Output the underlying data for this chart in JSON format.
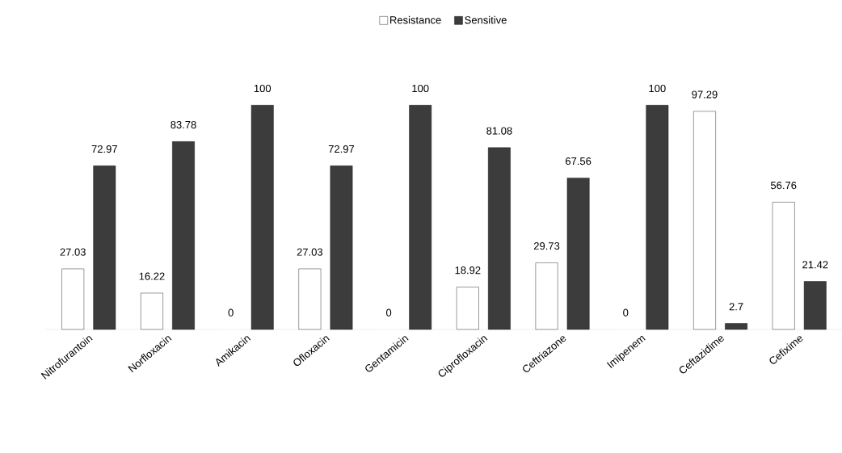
{
  "chart_data": {
    "type": "bar",
    "categories": [
      "Nitrofurantoin",
      "Norfloxacin",
      "Amikacin",
      "Ofloxacin",
      "Gentamicin",
      "Ciprofloxacin",
      "Ceftriazone",
      "Imipenem",
      "Ceftazidime",
      "Cefixime"
    ],
    "series": [
      {
        "name": "Resistance",
        "color": "#ffffff",
        "values": [
          27.03,
          16.22,
          0,
          27.03,
          0,
          18.92,
          29.73,
          0,
          97.29,
          56.76
        ]
      },
      {
        "name": "Sensitive",
        "color": "#3c3c3c",
        "values": [
          72.97,
          83.78,
          100,
          72.97,
          100,
          81.08,
          67.56,
          100,
          2.7,
          21.42
        ]
      }
    ],
    "data_labels": true,
    "legend": "top"
  }
}
